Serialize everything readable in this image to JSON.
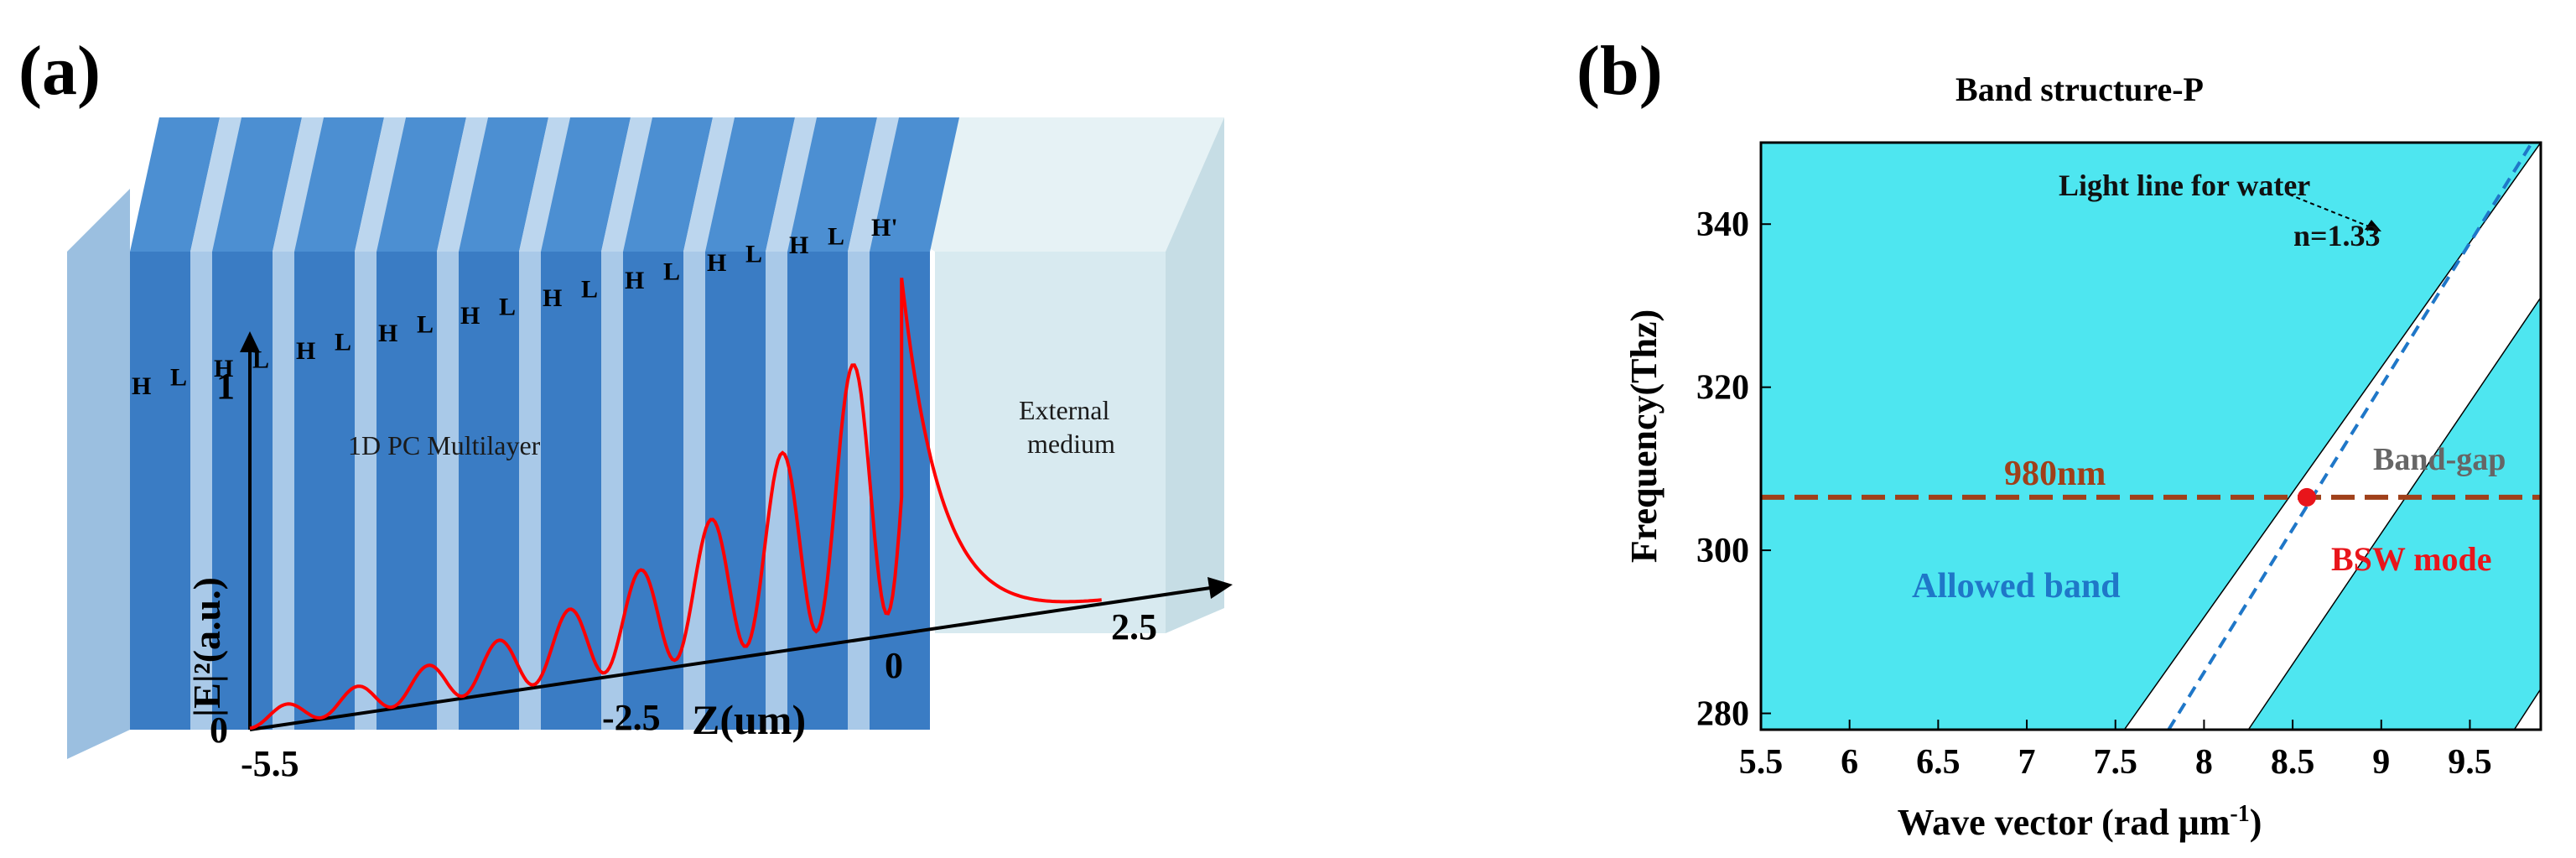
{
  "panel_a": {
    "label": "(a)",
    "layer_labels": [
      "H",
      "L",
      "H",
      "L",
      "H",
      "L",
      "H",
      "L",
      "H",
      "L",
      "H",
      "L",
      "H",
      "L",
      "H",
      "L",
      "H",
      "L",
      "H'"
    ],
    "multilayer_label": "1D PC Multilayer",
    "external_label_line1": "External",
    "external_label_line2": "medium",
    "y_axis_label": "|E|²(a.u.)",
    "y_tick_top": "1",
    "y_tick_bottom": "0",
    "x_axis_label": "Z(um)",
    "x_ticks": [
      "-5.5",
      "-2.5",
      "0",
      "2.5"
    ],
    "colors": {
      "high_index": "#3a7cc4",
      "low_index": "#a9c9e8",
      "external": "#d8eaf0",
      "field": "#ff0000"
    }
  },
  "panel_b": {
    "label": "(b)",
    "annotations": {
      "light_line": "Light line for water",
      "index": "n=1.33",
      "band_gap": "Band-gap",
      "wavelength": "980nm",
      "bsw_mode": "BSW mode",
      "allowed_band": "Allowed band"
    },
    "colors": {
      "band": "#4ee6f0",
      "gap": "#ffffff",
      "light_line": "#1f77c8",
      "wavelength_line": "#a0401a",
      "bsw": "#e8151b"
    }
  },
  "chart_data": {
    "type": "area",
    "title": "Band structure-P",
    "xlabel": "Wave vector (rad μm",
    "xlabel_sup": "-1",
    "xlabel_end": ")",
    "ylabel": "Frequency(Thz)",
    "xlim": [
      5.5,
      9.9
    ],
    "ylim": [
      278,
      350
    ],
    "x_ticks": [
      5.5,
      6,
      6.5,
      7,
      7.5,
      8,
      8.5,
      9,
      9.5
    ],
    "y_ticks": [
      280,
      300,
      320,
      340
    ],
    "gap_1_left_edge": [
      [
        7.55,
        278
      ],
      [
        9.9,
        350
      ]
    ],
    "gap_1_right_edge": [
      [
        8.25,
        278
      ],
      [
        9.9,
        331
      ]
    ],
    "gap_2_left_edge": [
      [
        9.75,
        278
      ],
      [
        9.9,
        283
      ]
    ],
    "light_line": [
      [
        7.8,
        278
      ],
      [
        9.85,
        350
      ]
    ],
    "wavelength_line_y": 306.5,
    "bsw_point": [
      8.58,
      306.5
    ]
  }
}
